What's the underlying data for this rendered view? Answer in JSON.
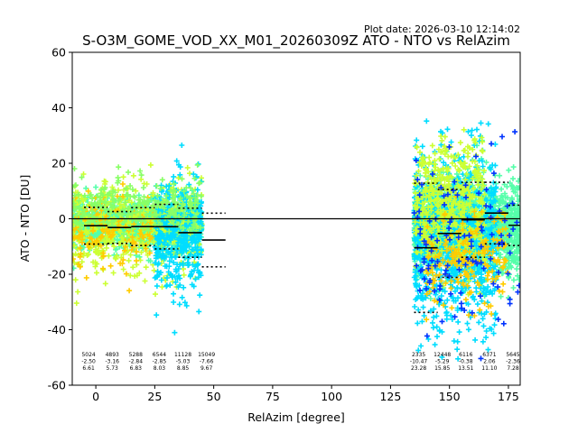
{
  "chart_data": {
    "type": "scatter",
    "title": "S-O3M_GOME_VOD_XX_M01_20260309Z ATO - NTO vs RelAzim",
    "plot_date": "Plot date: 2026-03-10 12:14:02",
    "xlabel": "RelAzim [degree]",
    "ylabel": "ATO - NTO [DU]",
    "xlim": [
      -10,
      180
    ],
    "ylim": [
      -60,
      60
    ],
    "xticks": [
      0,
      25,
      50,
      75,
      100,
      125,
      150,
      175
    ],
    "yticks": [
      -60,
      -40,
      -20,
      0,
      20,
      40,
      60
    ],
    "zero_line": 0,
    "bins": [
      {
        "center": 0,
        "mean": -2.5,
        "std": 6.61,
        "count": "5024",
        "mean_label": "-2.50",
        "std_label": "6.61"
      },
      {
        "center": 10,
        "mean": -3.16,
        "std": 5.73,
        "count": "4893",
        "mean_label": "-3.16",
        "std_label": "5.73"
      },
      {
        "center": 20,
        "mean": -2.84,
        "std": 6.83,
        "count": "5288",
        "mean_label": "-2.84",
        "std_label": "6.83"
      },
      {
        "center": 30,
        "mean": -2.85,
        "std": 8.03,
        "count": "6544",
        "mean_label": "-2.85",
        "std_label": "8.03"
      },
      {
        "center": 40,
        "mean": -5.03,
        "std": 8.85,
        "count": "11128",
        "mean_label": "-5.03",
        "std_label": "8.85"
      },
      {
        "center": 50,
        "mean": -7.66,
        "std": 9.67,
        "count": "15049",
        "mean_label": "-7.66",
        "std_label": "9.67"
      },
      {
        "center": 140,
        "mean": -10.47,
        "std": 23.28,
        "count": "2335",
        "mean_label": "-10.47",
        "std_label": "23.28"
      },
      {
        "center": 150,
        "mean": -5.29,
        "std": 15.85,
        "count": "12448",
        "mean_label": "-5.29",
        "std_label": "15.85"
      },
      {
        "center": 160,
        "mean": -0.38,
        "std": 13.51,
        "count": "6116",
        "mean_label": "-0.38",
        "std_label": "13.51"
      },
      {
        "center": 170,
        "mean": 2.06,
        "std": 11.1,
        "count": "6371",
        "mean_label": "2.06",
        "std_label": "11.10"
      },
      {
        "center": 180,
        "mean": -2.36,
        "std": 7.28,
        "count": "5645",
        "mean_label": "-2.36",
        "std_label": "7.28"
      }
    ],
    "colors": {
      "main": "#55ffaa",
      "secondary": "#00ddff",
      "highlight": "#ccff33",
      "accent": "#ffcc00",
      "extreme": "#0033ff",
      "light": "#88ff66"
    },
    "point_clusters": [
      {
        "x_range": [
          -10,
          45
        ],
        "y_center": -2.5,
        "y_spread": 8,
        "count": 1200,
        "color": "main"
      },
      {
        "x_range": [
          -10,
          45
        ],
        "y_center": -3.0,
        "y_spread": 15,
        "count": 500,
        "color": "highlight"
      },
      {
        "x_range": [
          25,
          45
        ],
        "y_center": -8.0,
        "y_spread": 20,
        "count": 400,
        "color": "secondary"
      },
      {
        "x_range": [
          -10,
          25
        ],
        "y_center": -4.0,
        "y_spread": 12,
        "count": 150,
        "color": "accent"
      },
      {
        "x_range": [
          135,
          180
        ],
        "y_center": -3.0,
        "y_spread": 15,
        "count": 1800,
        "color": "main"
      },
      {
        "x_range": [
          135,
          170
        ],
        "y_center": -8.0,
        "y_spread": 28,
        "count": 900,
        "color": "secondary"
      },
      {
        "x_range": [
          135,
          165
        ],
        "y_center": 5.0,
        "y_spread": 20,
        "count": 500,
        "color": "highlight"
      },
      {
        "x_range": [
          140,
          175
        ],
        "y_center": -15.0,
        "y_spread": 15,
        "count": 200,
        "color": "accent"
      },
      {
        "x_range": [
          135,
          180
        ],
        "y_center": -10.0,
        "y_spread": 30,
        "count": 120,
        "color": "extreme"
      },
      {
        "x_range": [
          -10,
          45
        ],
        "y_center": 5.0,
        "y_spread": 10,
        "count": 250,
        "color": "light"
      }
    ]
  }
}
